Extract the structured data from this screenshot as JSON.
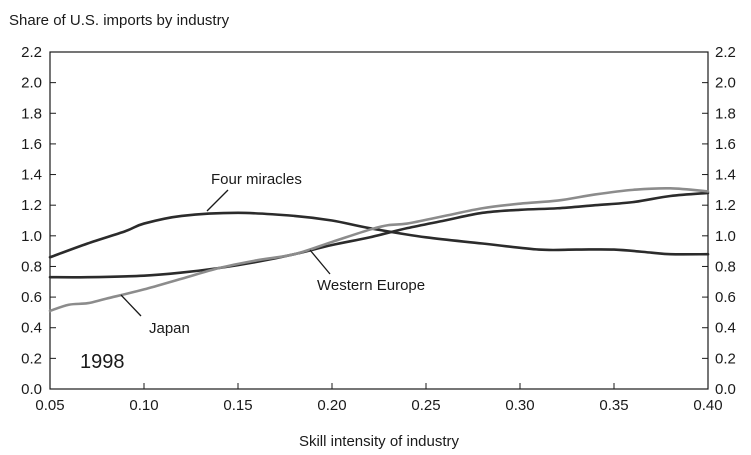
{
  "chart_data": {
    "type": "line",
    "title": "Share of U.S. imports by industry",
    "xlabel": "Skill intensity of industry",
    "ylabel": "",
    "xlim": [
      0.05,
      0.4
    ],
    "ylim": [
      0.0,
      2.2
    ],
    "x_ticks": [
      "0.05",
      "0.10",
      "0.15",
      "0.20",
      "0.25",
      "0.30",
      "0.35",
      "0.40"
    ],
    "y_ticks": [
      "0.0",
      "0.2",
      "0.4",
      "0.6",
      "0.8",
      "1.0",
      "1.2",
      "1.4",
      "1.6",
      "1.8",
      "2.0",
      "2.2"
    ],
    "grid": false,
    "year_label": "1998",
    "series": [
      {
        "name": "Four miracles",
        "color": "#2b2b2b",
        "x": [
          0.05,
          0.07,
          0.09,
          0.1,
          0.12,
          0.15,
          0.18,
          0.2,
          0.22,
          0.25,
          0.28,
          0.31,
          0.33,
          0.35,
          0.37,
          0.38,
          0.4
        ],
        "y": [
          0.86,
          0.95,
          1.03,
          1.08,
          1.13,
          1.15,
          1.13,
          1.1,
          1.05,
          0.99,
          0.95,
          0.91,
          0.91,
          0.91,
          0.89,
          0.88,
          0.88
        ]
      },
      {
        "name": "Western Europe",
        "color": "#2b2b2b",
        "x": [
          0.05,
          0.07,
          0.1,
          0.12,
          0.14,
          0.16,
          0.18,
          0.2,
          0.22,
          0.24,
          0.26,
          0.28,
          0.3,
          0.32,
          0.34,
          0.36,
          0.38,
          0.4
        ],
        "y": [
          0.73,
          0.73,
          0.74,
          0.76,
          0.79,
          0.83,
          0.88,
          0.94,
          0.99,
          1.05,
          1.1,
          1.15,
          1.17,
          1.18,
          1.2,
          1.22,
          1.26,
          1.28
        ]
      },
      {
        "name": "Japan",
        "color": "#8c8c8c",
        "x": [
          0.05,
          0.06,
          0.07,
          0.08,
          0.1,
          0.12,
          0.14,
          0.16,
          0.18,
          0.2,
          0.22,
          0.23,
          0.24,
          0.26,
          0.28,
          0.3,
          0.32,
          0.34,
          0.36,
          0.38,
          0.4
        ],
        "y": [
          0.51,
          0.55,
          0.56,
          0.59,
          0.65,
          0.72,
          0.79,
          0.84,
          0.88,
          0.96,
          1.04,
          1.07,
          1.08,
          1.13,
          1.18,
          1.21,
          1.23,
          1.27,
          1.3,
          1.31,
          1.29
        ]
      }
    ],
    "annotations": [
      {
        "text": "Four miracles",
        "series": "Four miracles"
      },
      {
        "text": "Western Europe",
        "series": "Western Europe"
      },
      {
        "text": "Japan",
        "series": "Japan"
      }
    ]
  }
}
